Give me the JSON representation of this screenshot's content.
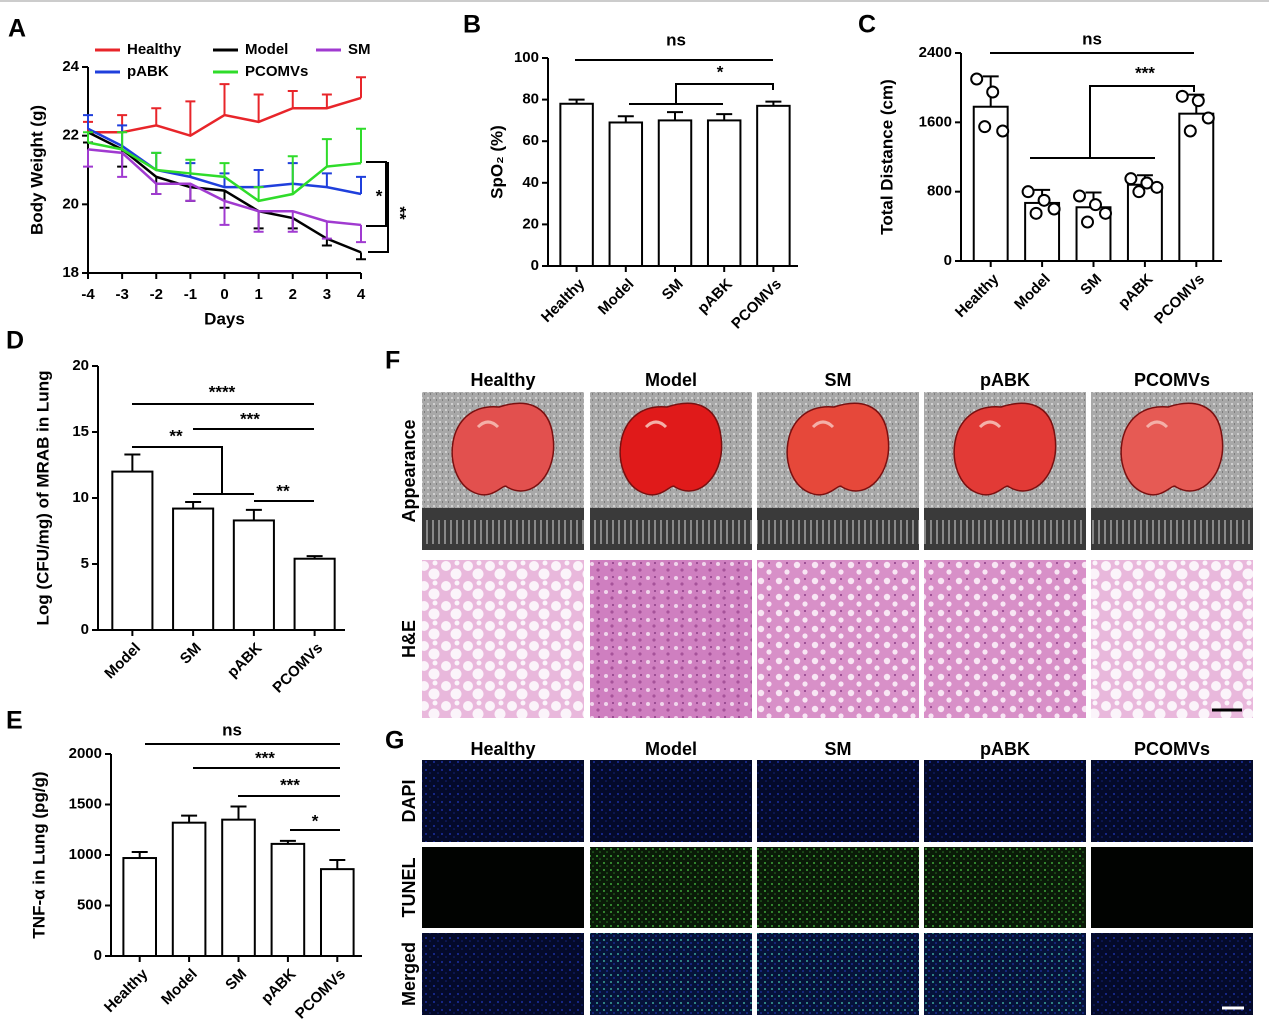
{
  "chart_data": [
    {
      "type": "line",
      "panel": "A",
      "xlabel": "Days",
      "ylabel": "Body Weight (g)",
      "x": [
        -4,
        -3,
        -2,
        -1,
        0,
        1,
        2,
        3,
        4
      ],
      "xlim": [
        -4,
        4
      ],
      "xticks": [
        -4,
        -3,
        -2,
        -1,
        0,
        1,
        2,
        3,
        4
      ],
      "ylim": [
        18,
        24
      ],
      "yticks": [
        18,
        20,
        22,
        24
      ],
      "series": [
        {
          "name": "Healthy",
          "color": "#e8252a",
          "values": [
            22.1,
            22.1,
            22.3,
            22.0,
            22.6,
            22.4,
            22.8,
            22.8,
            23.1
          ],
          "errors": [
            0.3,
            0.5,
            0.5,
            1.0,
            0.9,
            0.8,
            0.5,
            0.4,
            0.6
          ]
        },
        {
          "name": "Model",
          "color": "#000000",
          "values": [
            22.1,
            21.6,
            20.8,
            20.5,
            20.4,
            19.8,
            19.6,
            19.0,
            18.6
          ],
          "errors": [
            0.3,
            0.5,
            0.5,
            0.4,
            0.5,
            0.5,
            0.3,
            0.2,
            0.2
          ]
        },
        {
          "name": "SM",
          "color": "#a03ad0",
          "values": [
            21.6,
            21.5,
            20.6,
            20.6,
            20.1,
            19.8,
            19.8,
            19.5,
            19.4
          ],
          "errors": [
            0.5,
            0.7,
            0.3,
            0.5,
            0.7,
            0.6,
            0.6,
            0.5,
            0.5
          ]
        },
        {
          "name": "pABK",
          "color": "#1f3fdc",
          "values": [
            22.2,
            21.7,
            21.0,
            20.8,
            20.5,
            20.5,
            20.6,
            20.5,
            20.3
          ],
          "errors": [
            0.4,
            0.6,
            0.5,
            0.4,
            0.4,
            0.5,
            0.6,
            0.4,
            0.5
          ]
        },
        {
          "name": "PCOMVs",
          "color": "#2fdc2a",
          "values": [
            21.8,
            21.6,
            21.0,
            20.9,
            20.8,
            20.1,
            20.3,
            21.1,
            21.2
          ],
          "errors": [
            0.3,
            0.5,
            0.5,
            0.4,
            0.4,
            0.4,
            1.1,
            0.8,
            1.0
          ]
        }
      ],
      "annotations": [
        "*",
        "**"
      ]
    },
    {
      "type": "bar",
      "panel": "B",
      "ylabel": "SpO₂ (%)",
      "categories": [
        "Healthy",
        "Model",
        "SM",
        "pABK",
        "PCOMVs"
      ],
      "values": [
        78,
        69,
        70,
        70,
        77
      ],
      "errors": [
        2,
        3,
        4,
        3,
        2
      ],
      "ylim": [
        0,
        100
      ],
      "yticks": [
        0,
        20,
        40,
        60,
        80,
        100
      ],
      "annotations": [
        "ns",
        "*"
      ]
    },
    {
      "type": "bar",
      "panel": "C",
      "ylabel": "Total Distance (cm)",
      "categories": [
        "Healthy",
        "Model",
        "SM",
        "pABK",
        "PCOMVs"
      ],
      "values": [
        1780,
        670,
        620,
        880,
        1700
      ],
      "errors": [
        350,
        150,
        170,
        110,
        220
      ],
      "points": [
        [
          2100,
          1950,
          1500,
          1550
        ],
        [
          800,
          700,
          600,
          550
        ],
        [
          750,
          650,
          550,
          450
        ],
        [
          950,
          900,
          850,
          800
        ],
        [
          1900,
          1850,
          1650,
          1500
        ]
      ],
      "ylim": [
        0,
        2400
      ],
      "yticks": [
        0,
        800,
        1600,
        2400
      ],
      "annotations": [
        "ns",
        "***"
      ]
    },
    {
      "type": "bar",
      "panel": "D",
      "ylabel": "Log (CFU/mg) of MRAB in Lung",
      "categories": [
        "Model",
        "SM",
        "pABK",
        "PCOMVs"
      ],
      "values": [
        12,
        9.2,
        8.3,
        5.4
      ],
      "errors": [
        1.3,
        0.5,
        0.8,
        0.2
      ],
      "ylim": [
        0,
        20
      ],
      "yticks": [
        0,
        5,
        10,
        15,
        20
      ],
      "annotations": [
        "****",
        "***",
        "**",
        "**"
      ]
    },
    {
      "type": "bar",
      "panel": "E",
      "ylabel": "TNF-α in Lung (pg/g)",
      "categories": [
        "Healthy",
        "Model",
        "SM",
        "pABK",
        "PCOMVs"
      ],
      "values": [
        970,
        1320,
        1350,
        1110,
        860
      ],
      "errors": [
        60,
        70,
        130,
        30,
        90
      ],
      "ylim": [
        0,
        2000
      ],
      "yticks": [
        0,
        500,
        1000,
        1500,
        2000
      ],
      "annotations": [
        "ns",
        "***",
        "***",
        "*"
      ]
    }
  ],
  "panel_f": {
    "panel": "F",
    "columns": [
      "Healthy",
      "Model",
      "SM",
      "pABK",
      "PCOMVs"
    ],
    "rows": [
      "Appearance",
      "H&E"
    ]
  },
  "panel_g": {
    "panel": "G",
    "columns": [
      "Healthy",
      "Model",
      "SM",
      "pABK",
      "PCOMVs"
    ],
    "rows": [
      "DAPI",
      "TUNEL",
      "Merged"
    ]
  }
}
